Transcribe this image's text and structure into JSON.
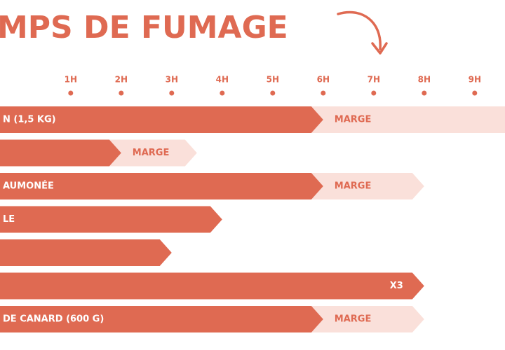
{
  "chart_data": {
    "type": "bar",
    "orientation": "horizontal",
    "title": "MPS DE FUMAGE",
    "categories": [
      "N (1,5 KG)",
      null,
      "AUMONÉE",
      "LE",
      null,
      null,
      "DE CANARD (600 G)"
    ],
    "xlim": [
      -0.4,
      9.6
    ],
    "xticks": [
      {
        "value": 1,
        "label": "1H"
      },
      {
        "value": 2,
        "label": "2H"
      },
      {
        "value": 3,
        "label": "3H"
      },
      {
        "value": 4,
        "label": "4H"
      },
      {
        "value": 5,
        "label": "5H"
      },
      {
        "value": 6,
        "label": "6H"
      },
      {
        "value": 7,
        "label": "7H"
      },
      {
        "value": 8,
        "label": "8H"
      },
      {
        "value": 9,
        "label": "9H"
      }
    ],
    "series": [
      {
        "color": "#df6a52",
        "values": [
          6,
          2,
          6,
          4,
          3,
          8,
          6
        ],
        "labels": [
          null,
          null,
          null,
          null,
          null,
          "X3",
          null
        ]
      },
      {
        "color": "#fae0da",
        "values": [
          4,
          1.5,
          2,
          null,
          null,
          null,
          2
        ],
        "labels": [
          "MARGE",
          "MARGE",
          "MARGE",
          null,
          null,
          null,
          "MARGE"
        ]
      }
    ]
  }
}
